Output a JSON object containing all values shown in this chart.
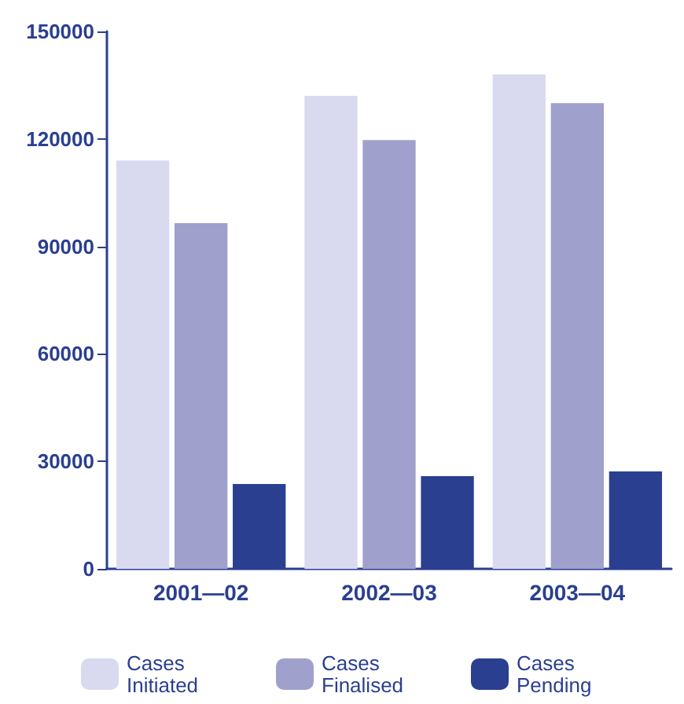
{
  "chart_data": {
    "type": "bar",
    "categories": [
      "2001—02",
      "2002—03",
      "2003—04"
    ],
    "series": [
      {
        "name": "Cases Initiated",
        "color": "#d9daf0",
        "values": [
          114000,
          132000,
          138000
        ]
      },
      {
        "name": "Cases Finalised",
        "color": "#9fa0cc",
        "values": [
          96500,
          119700,
          130000
        ]
      },
      {
        "name": "Cases Pending",
        "color": "#2a3f8f",
        "values": [
          23700,
          25900,
          27200
        ]
      }
    ],
    "ylim": [
      0,
      150000
    ],
    "yticks": [
      0,
      30000,
      60000,
      90000,
      120000,
      150000
    ],
    "grid": false,
    "legend": "bottom"
  }
}
